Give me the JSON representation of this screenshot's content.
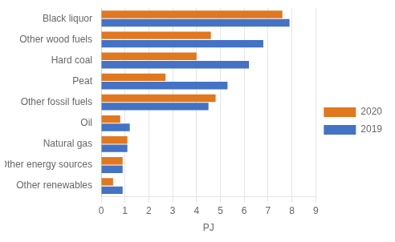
{
  "chart_data": {
    "type": "bar",
    "orientation": "horizontal",
    "categories": [
      "Other renewables",
      "Other energy sources",
      "Natural gas",
      "Oil",
      "Other fossil fuels",
      "Peat",
      "Hard coal",
      "Other wood fuels",
      "Black liquor"
    ],
    "series": [
      {
        "name": "2020",
        "color": "#E07820",
        "values": [
          0.5,
          0.9,
          1.1,
          0.8,
          4.8,
          2.7,
          4.0,
          4.6,
          7.6
        ]
      },
      {
        "name": "2019",
        "color": "#4472C4",
        "values": [
          0.9,
          0.9,
          1.1,
          1.2,
          4.5,
          5.3,
          6.2,
          6.8,
          7.9
        ]
      }
    ],
    "xlabel": "PJ",
    "xlim": [
      0,
      9
    ],
    "xticks": [
      0,
      1,
      2,
      3,
      4,
      5,
      6,
      7,
      8,
      9
    ],
    "grid": true,
    "legend": "right"
  }
}
